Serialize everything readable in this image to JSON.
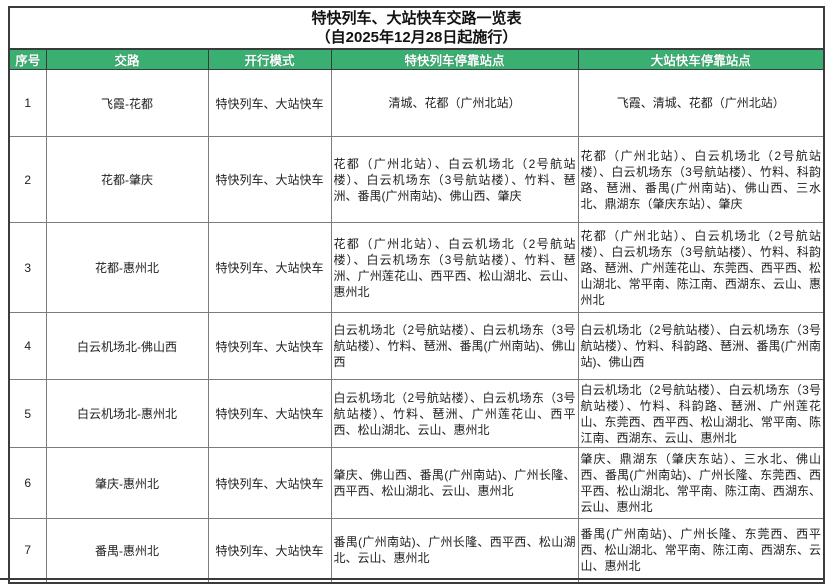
{
  "title": {
    "line1": "特快列车、大站快车交路一览表",
    "line2": "（自2025年12月28日起施行）"
  },
  "table": {
    "header_bg": "#3aaf72",
    "header_text_color": "#ffffff",
    "headers": [
      "序号",
      "交路",
      "开行模式",
      "特快列车停靠站点",
      "大站快车停靠站点"
    ],
    "rows": [
      {
        "no": "1",
        "route": "飞霞-花都",
        "mode": "特快列车、大站快车",
        "express_stops": "清城、花都（广州北站）",
        "major_stops": "飞霞、清城、花都（广州北站）"
      },
      {
        "no": "2",
        "route": "花都-肇庆",
        "mode": "特快列车、大站快车",
        "express_stops": "花都（广州北站）、白云机场北（2号航站楼）、白云机场东（3号航站楼）、竹料、琶洲、番禺(广州南站)、佛山西、肇庆",
        "major_stops": "花都（广州北站）、白云机场北（2号航站楼）、白云机场东（3号航站楼）、竹料、科韵路、琶洲、番禺(广州南站)、佛山西、三水北、鼎湖东（肇庆东站）、肇庆"
      },
      {
        "no": "3",
        "route": "花都-惠州北",
        "mode": "特快列车、大站快车",
        "express_stops": "花都（广州北站）、白云机场北（2号航站楼）、白云机场东（3号航站楼）、竹料、琶洲、广州莲花山、西平西、松山湖北、云山、惠州北",
        "major_stops": "花都（广州北站）、白云机场北（2号航站楼）、白云机场东（3号航站楼）、竹料、科韵路、琶洲、广州莲花山、东莞西、西平西、松山湖北、常平南、陈江南、西湖东、云山、惠州北"
      },
      {
        "no": "4",
        "route": "白云机场北-佛山西",
        "mode": "特快列车、大站快车",
        "express_stops": "白云机场北（2号航站楼）、白云机场东（3号航站楼）、竹料、琶洲、番禺(广州南站)、佛山西",
        "major_stops": "白云机场北（2号航站楼）、白云机场东（3号航站楼）、竹料、科韵路、琶洲、番禺(广州南站)、佛山西"
      },
      {
        "no": "5",
        "route": "白云机场北-惠州北",
        "mode": "特快列车、大站快车",
        "express_stops": "白云机场北（2号航站楼）、白云机场东（3号航站楼）、竹料、琶洲、广州莲花山、西平西、松山湖北、云山、惠州北",
        "major_stops": "白云机场北（2号航站楼）、白云机场东（3号航站楼）、竹料、科韵路、琶洲、广州莲花山、东莞西、西平西、松山湖北、常平南、陈江南、西湖东、云山、惠州北"
      },
      {
        "no": "6",
        "route": "肇庆-惠州北",
        "mode": "特快列车、大站快车",
        "express_stops": "肇庆、佛山西、番禺(广州南站)、广州长隆、西平西、松山湖北、云山、惠州北",
        "major_stops": "肇庆、鼎湖东（肇庆东站）、三水北、佛山西、番禺(广州南站)、广州长隆、东莞西、西平西、松山湖北、常平南、陈江南、西湖东、云山、惠州北"
      },
      {
        "no": "7",
        "route": "番禺-惠州北",
        "mode": "特快列车、大站快车",
        "express_stops": "番禺(广州南站)、广州长隆、西平西、松山湖北、云山、惠州北",
        "major_stops": "番禺(广州南站)、广州长隆、东莞西、西平西、松山湖北、常平南、陈江南、西湖东、云山、惠州北"
      }
    ]
  }
}
